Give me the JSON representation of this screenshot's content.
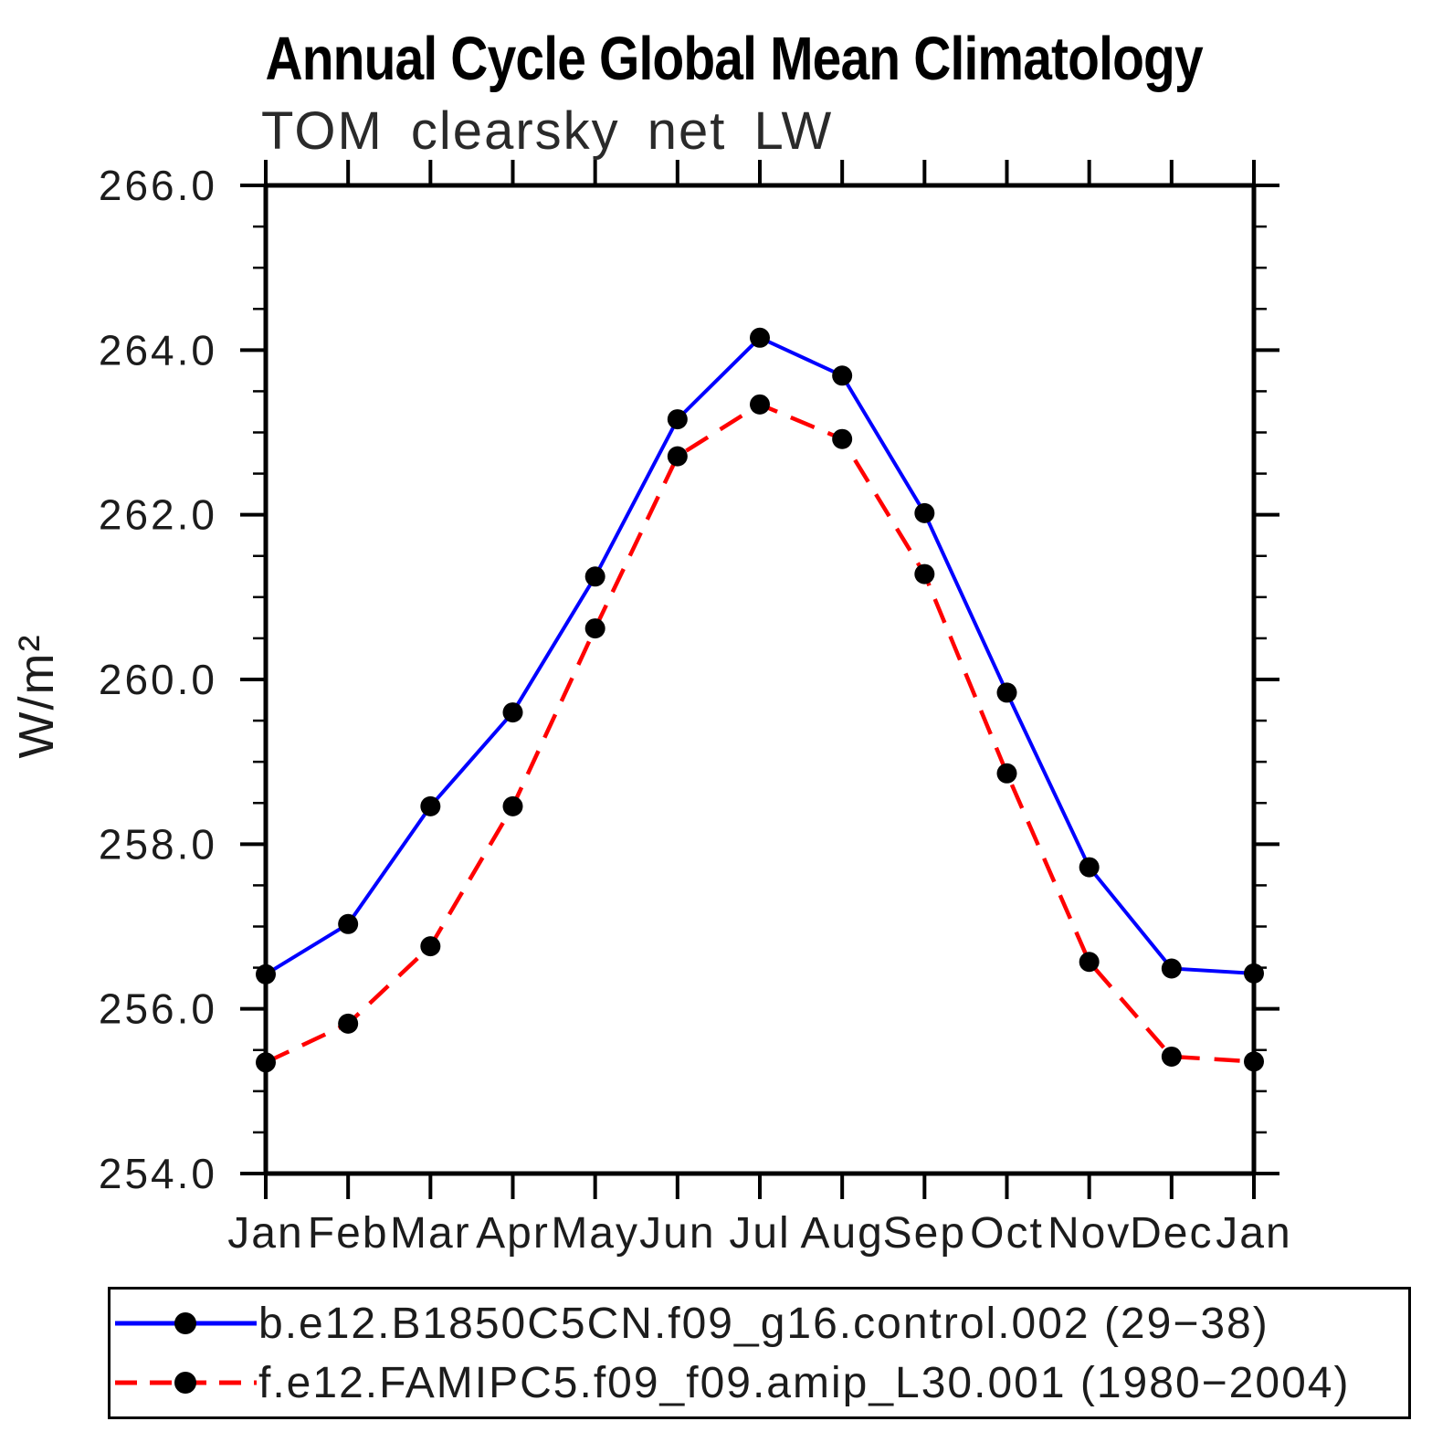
{
  "title": "Annual Cycle Global Mean Climatology",
  "chart_data": {
    "type": "line",
    "title": "Annual Cycle Global Mean Climatology",
    "subtitle": "TOM clearsky net LW",
    "xlabel": "",
    "ylabel": "W/m²",
    "ylim": [
      254.0,
      266.0
    ],
    "ytick_step": 2.0,
    "yminor_step": 0.5,
    "grid": false,
    "legend_position": "bottom",
    "categories": [
      "Jan",
      "Feb",
      "Mar",
      "Apr",
      "May",
      "Jun",
      "Jul",
      "Aug",
      "Sep",
      "Oct",
      "Nov",
      "Dec",
      "Jan"
    ],
    "series": [
      {
        "name": "b.e12.B1850C5CN.f09_g16.control.002 (29−38)",
        "color": "#0000ff",
        "line_style": "solid",
        "marker": "circle",
        "marker_color": "#000000",
        "values": [
          256.42,
          257.03,
          258.46,
          259.6,
          261.25,
          263.16,
          264.15,
          263.69,
          262.02,
          259.84,
          257.72,
          256.49,
          256.43
        ]
      },
      {
        "name": "f.e12.FAMIPC5.f09_f09.amip_L30.001 (1980−2004)",
        "color": "#ff0000",
        "line_style": "dashed",
        "marker": "circle",
        "marker_color": "#000000",
        "values": [
          255.35,
          255.82,
          256.76,
          258.46,
          260.62,
          262.71,
          263.34,
          262.92,
          261.28,
          258.86,
          256.57,
          255.42,
          255.36
        ]
      }
    ]
  },
  "colors": {
    "axis": "#000000",
    "text": "#1c1c1c",
    "background": "#ffffff"
  }
}
